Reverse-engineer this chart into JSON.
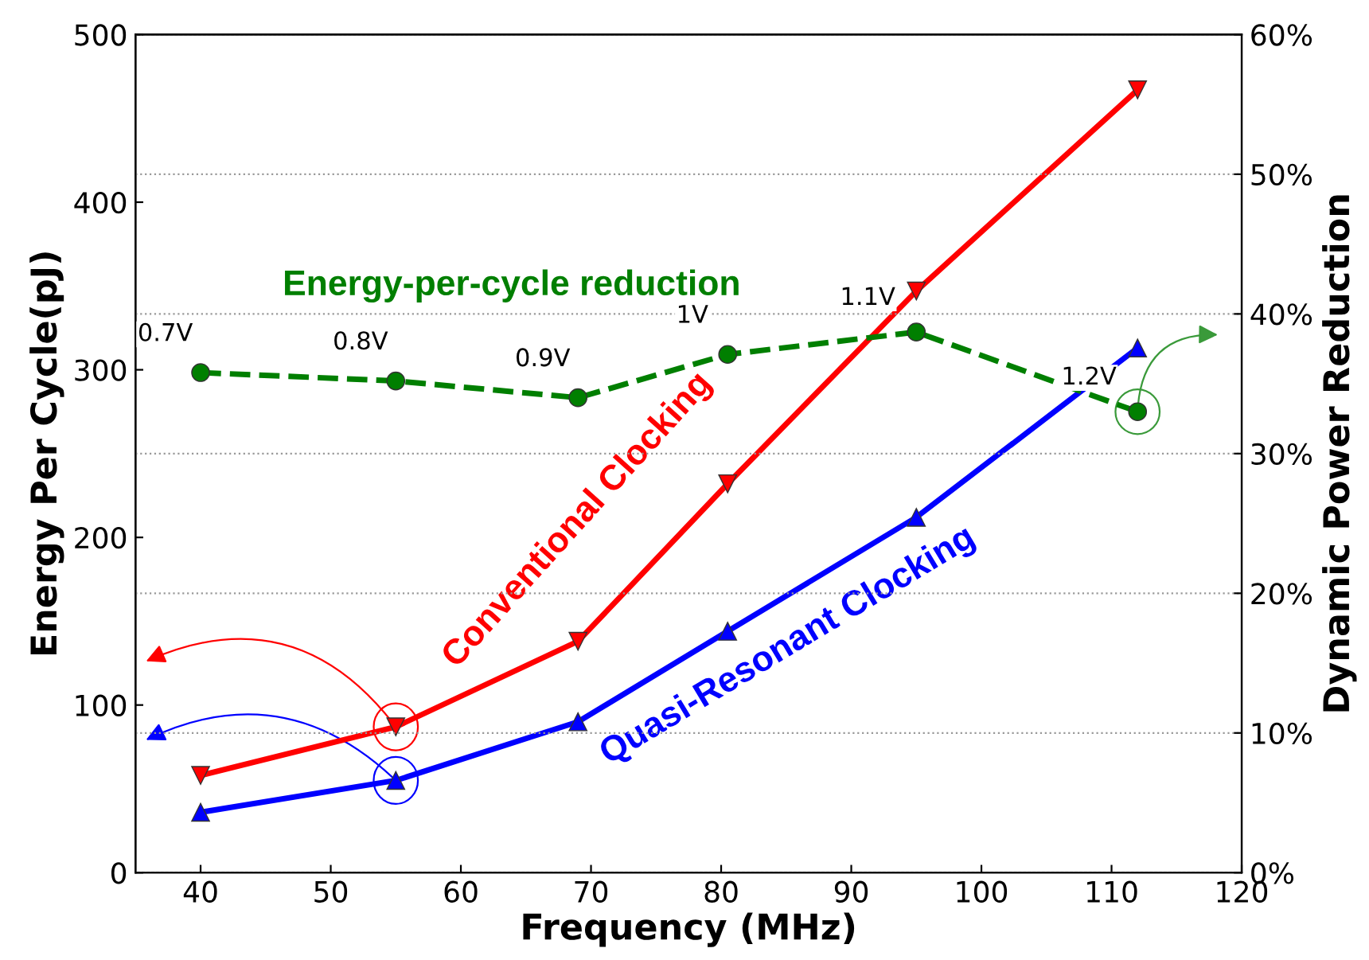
{
  "chart_data": {
    "type": "line",
    "xlabel": "Frequency (MHz)",
    "ylabel": "Energy Per Cycle(pJ)",
    "y2label": "Dynamic Power Reduction",
    "x": [
      40,
      55,
      69,
      80.5,
      95,
      112
    ],
    "series": [
      {
        "name": "Conventional Clocking",
        "color": "#ff0000",
        "marker": "triangle-down",
        "line_style": "solid",
        "values": [
          58,
          87,
          138,
          232,
          347,
          467
        ]
      },
      {
        "name": "Quasi-Resonant Clocking",
        "color": "#0000ff",
        "marker": "triangle",
        "line_style": "solid",
        "values": [
          36,
          55,
          90,
          144,
          212,
          313
        ]
      },
      {
        "name": "Energy-per-cycle reduction",
        "color": "#007f00",
        "marker": "circle",
        "line_style": "dashed",
        "axis": "y2",
        "values": [
          35.8,
          35.2,
          34.0,
          37.1,
          38.7,
          33.0
        ]
      }
    ],
    "xlim": [
      35,
      120
    ],
    "xticks": [
      40,
      50,
      60,
      70,
      80,
      90,
      100,
      110,
      120
    ],
    "ylim": [
      0,
      500
    ],
    "yticks": [
      0,
      100,
      200,
      300,
      400,
      500
    ],
    "y2lim": [
      0,
      60
    ],
    "y2ticks": [
      {
        "value": 0,
        "label": "0%"
      },
      {
        "value": 10,
        "label": "10%"
      },
      {
        "value": 20,
        "label": "20%"
      },
      {
        "value": 30,
        "label": "30%"
      },
      {
        "value": 40,
        "label": "40%"
      },
      {
        "value": 50,
        "label": "50%"
      },
      {
        "value": 60,
        "label": "60%"
      }
    ],
    "grid": "y",
    "legend": false,
    "annotations": [
      "0.7V",
      "0.8V",
      "0.9V",
      "1V",
      "1.1V",
      "1.2V"
    ]
  }
}
